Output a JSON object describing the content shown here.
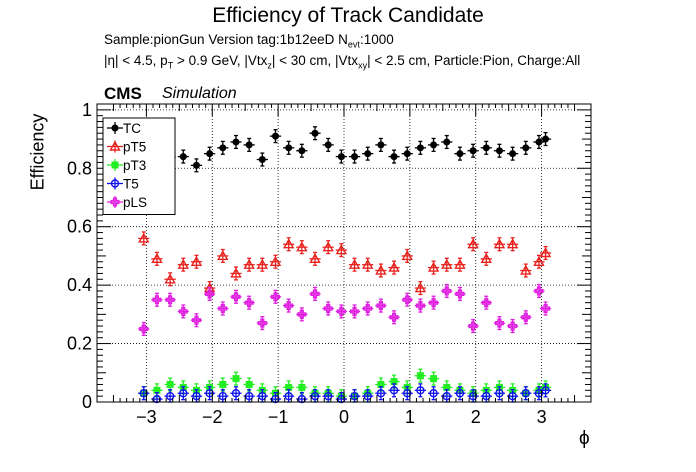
{
  "title": "Efficiency of Track Candidate",
  "subtitle": {
    "line1_a": "Sample:pionGun   Version tag:1b12eeD  N",
    "line1_sub": "evt",
    "line1_b": ":1000",
    "line2_a": "|η| < 4.5, p",
    "line2_sub1": "T",
    "line2_b": " > 0.9 GeV, |Vtx",
    "line2_sub2": "z",
    "line2_c": "| < 30 cm, |Vtx",
    "line2_sub3": "xy",
    "line2_d": "| < 2.5 cm, Particle:Pion, Charge:All"
  },
  "cms_label": "CMS",
  "simulation_label": "Simulation",
  "chart_data": {
    "type": "scatter",
    "xlabel": "ϕ",
    "ylabel": "Efficiency",
    "xlim": [
      -3.75,
      3.75
    ],
    "ylim": [
      0,
      1.02
    ],
    "grid": true,
    "legend_position": "top-left",
    "x_ticks": [
      -3,
      -2,
      -1,
      0,
      1,
      2,
      3
    ],
    "x_tick_labels": [
      "−3",
      "−2",
      "−1",
      "0",
      "1",
      "2",
      "3"
    ],
    "y_ticks": [
      0,
      0.2,
      0.4,
      0.6,
      0.8,
      1
    ],
    "y_tick_labels": [
      "0",
      "0.2",
      "0.4",
      "0.6",
      "0.8",
      "1"
    ],
    "x": [
      -3.04,
      -2.84,
      -2.64,
      -2.44,
      -2.24,
      -2.04,
      -1.84,
      -1.64,
      -1.44,
      -1.24,
      -1.04,
      -0.84,
      -0.64,
      -0.44,
      -0.24,
      -0.04,
      0.16,
      0.36,
      0.56,
      0.76,
      0.96,
      1.16,
      1.36,
      1.56,
      1.76,
      1.96,
      2.16,
      2.36,
      2.56,
      2.76,
      2.96,
      3.06
    ],
    "series": [
      {
        "name": "TC",
        "color": "#000000",
        "marker": "filled-circle",
        "values": [
          null,
          null,
          0.84,
          0.84,
          0.81,
          0.85,
          0.87,
          0.89,
          0.88,
          0.83,
          0.91,
          0.87,
          0.86,
          0.92,
          0.88,
          0.84,
          0.84,
          0.85,
          0.88,
          0.84,
          0.85,
          0.87,
          0.88,
          0.89,
          0.85,
          0.86,
          0.87,
          0.86,
          0.85,
          0.87,
          0.89,
          0.9
        ]
      },
      {
        "name": "pT5",
        "color": "#e8231f",
        "marker": "open-triangle",
        "values": [
          0.56,
          0.49,
          0.42,
          0.47,
          0.48,
          0.39,
          0.5,
          0.44,
          0.47,
          0.47,
          0.48,
          0.54,
          0.53,
          0.49,
          0.53,
          0.52,
          0.47,
          0.47,
          0.45,
          0.46,
          0.5,
          0.39,
          0.46,
          0.47,
          0.47,
          0.54,
          0.49,
          0.54,
          0.54,
          0.45,
          0.48,
          0.51
        ]
      },
      {
        "name": "pT3",
        "color": "#22ee22",
        "marker": "filled-square",
        "values": [
          0.03,
          0.04,
          0.06,
          0.05,
          0.04,
          0.05,
          0.06,
          0.08,
          0.06,
          0.04,
          0.03,
          0.05,
          0.05,
          0.03,
          0.03,
          0.02,
          0.02,
          0.03,
          0.06,
          0.07,
          0.05,
          0.09,
          0.08,
          0.05,
          0.04,
          0.03,
          0.04,
          0.05,
          0.04,
          0.03,
          0.04,
          0.05
        ]
      },
      {
        "name": "T5",
        "color": "#1010ee",
        "marker": "open-circle",
        "values": [
          0.03,
          0.01,
          0.02,
          0.03,
          0.02,
          0.03,
          0.02,
          0.03,
          0.02,
          0.02,
          0.01,
          0.02,
          0.01,
          0.02,
          0.02,
          0.01,
          0.02,
          0.02,
          0.03,
          0.04,
          0.03,
          0.04,
          0.03,
          0.02,
          0.03,
          0.02,
          0.02,
          0.03,
          0.02,
          0.03,
          0.03,
          0.04
        ]
      },
      {
        "name": "pLS",
        "color": "#e020e0",
        "marker": "open-cross",
        "values": [
          0.25,
          0.35,
          0.35,
          0.31,
          0.28,
          0.37,
          0.32,
          0.36,
          0.34,
          0.27,
          0.36,
          0.33,
          0.3,
          0.37,
          0.32,
          0.31,
          0.31,
          0.32,
          0.33,
          0.29,
          0.35,
          0.33,
          0.34,
          0.38,
          0.37,
          0.26,
          0.34,
          0.27,
          0.26,
          0.29,
          0.38,
          0.32
        ]
      }
    ]
  }
}
